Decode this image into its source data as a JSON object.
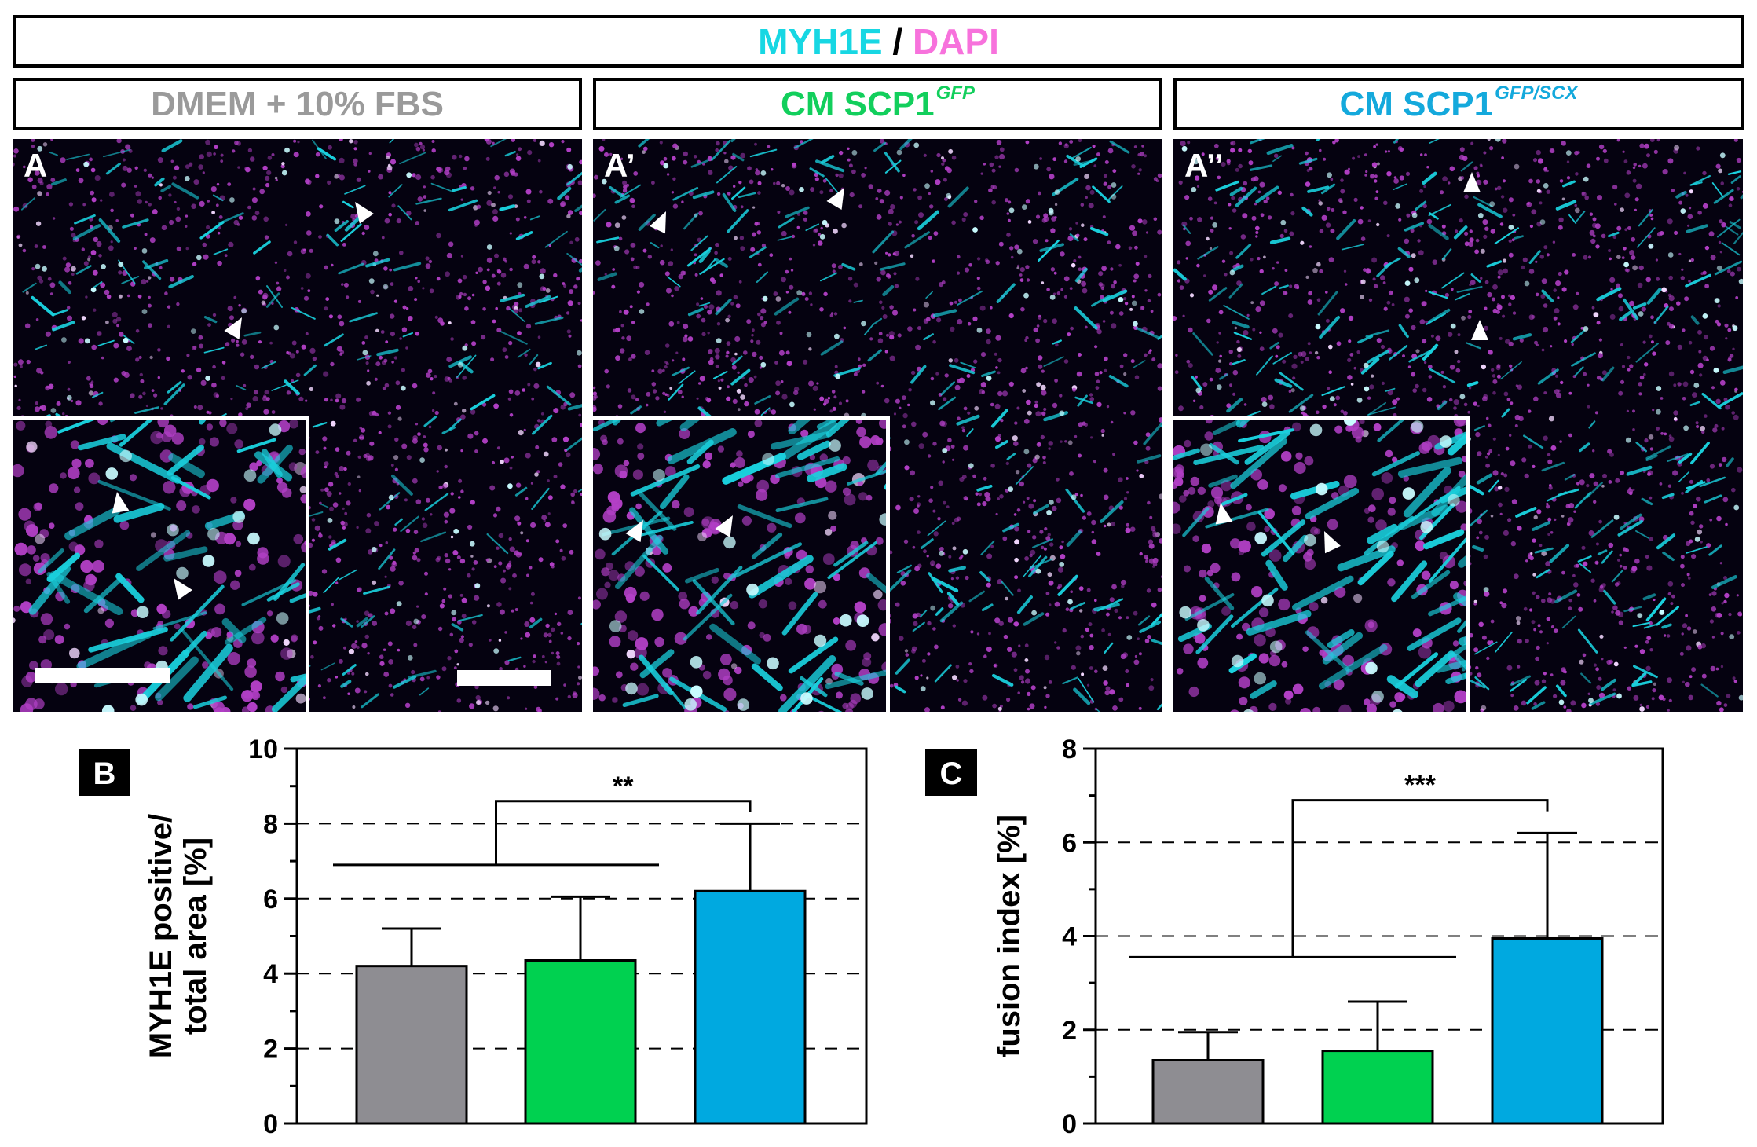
{
  "header": {
    "marker1": "MYH1E",
    "separator": " / ",
    "marker2": "DAPI",
    "marker1_color": "#17d7e3",
    "marker2_color": "#f772dc"
  },
  "conditions": [
    {
      "name": "DMEM + 10% FBS",
      "sup": "",
      "color": "#9a9a9a"
    },
    {
      "name": "CM SCP1",
      "sup": "GFP",
      "color": "#12cf5c"
    },
    {
      "name": "CM SCP1",
      "sup": "GFP/SCX",
      "color": "#14a9dc"
    }
  ],
  "panels": [
    {
      "label": "A"
    },
    {
      "label": "A’"
    },
    {
      "label": "A’’"
    }
  ],
  "image_colors": {
    "cyan": "#1ad1de",
    "magenta": "#b23fc6",
    "background": "#050210"
  },
  "chart_data": [
    {
      "panel_label": "B",
      "type": "bar",
      "categories": [
        "DMEM + 10% FBS",
        "CM SCP1GFP",
        "CM SCP1GFP/SCX"
      ],
      "values": [
        4.2,
        4.35,
        6.2
      ],
      "errors": [
        1.0,
        1.7,
        1.8
      ],
      "colors": [
        "#8e8d92",
        "#00d150",
        "#00a9e0"
      ],
      "ylabel_line1": "MYH1E positive/",
      "ylabel_line2": "total area [%]",
      "ylim": [
        0,
        10
      ],
      "yticks": [
        0,
        2,
        4,
        6,
        8,
        10
      ],
      "grid": "dashed at 2, 4, 6, 8",
      "significance": "**",
      "significance_group_y": 6.9,
      "significance_bracket_y": 8.6
    },
    {
      "panel_label": "C",
      "type": "bar",
      "categories": [
        "DMEM + 10% FBS",
        "CM SCP1GFP",
        "CM SCP1GFP/SCX"
      ],
      "values": [
        1.35,
        1.55,
        3.95
      ],
      "errors": [
        0.6,
        1.05,
        2.25
      ],
      "colors": [
        "#8e8d92",
        "#00d150",
        "#00a9e0"
      ],
      "ylabel_line1": "fusion index [%]",
      "ylabel_line2": "",
      "ylim": [
        0,
        8
      ],
      "yticks": [
        0,
        2,
        4,
        6,
        8
      ],
      "grid": "dashed at 2, 4, 6",
      "significance": "***",
      "significance_group_y": 3.55,
      "significance_bracket_y": 6.9
    }
  ]
}
